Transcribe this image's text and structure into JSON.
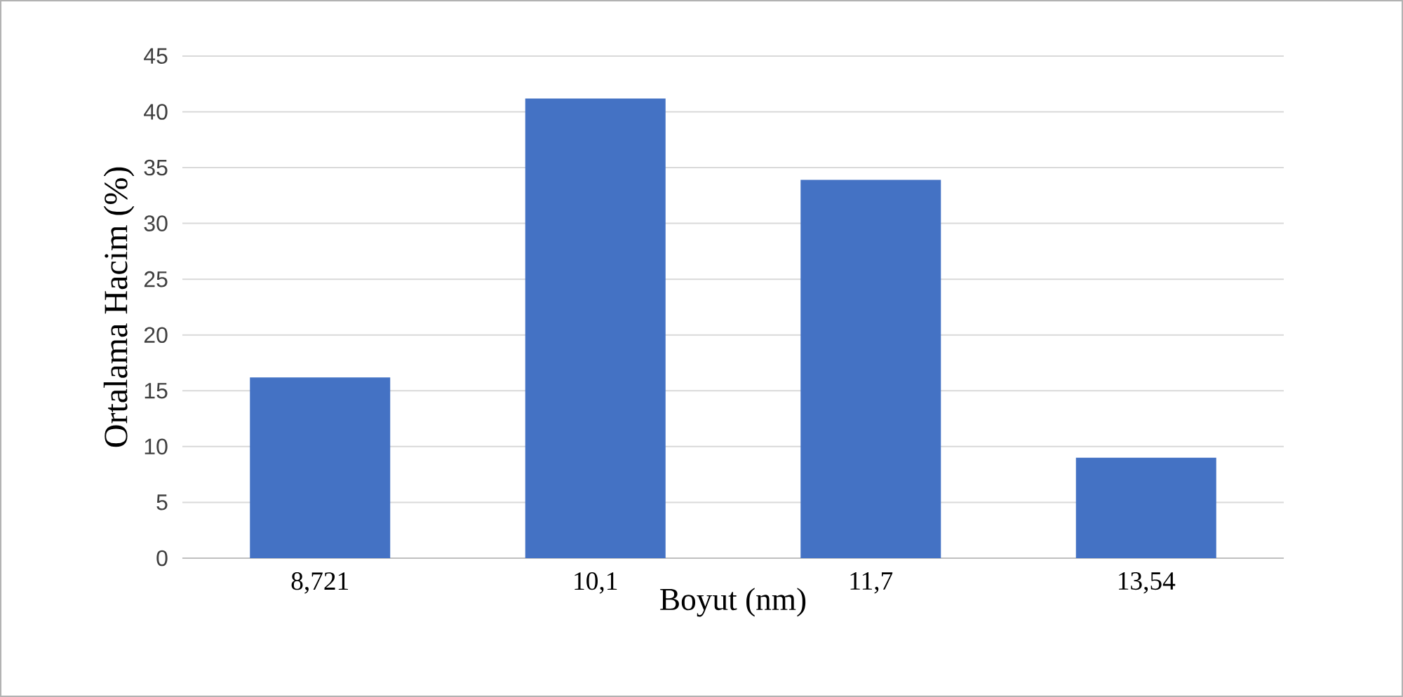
{
  "chart_data": {
    "type": "bar",
    "xlabel": "Boyut (nm)",
    "ylabel": "Ortalama Hacim (%)",
    "categories": [
      "8,721",
      "10,1",
      "11,7",
      "13,54"
    ],
    "values": [
      16.2,
      41.2,
      33.9,
      9.0
    ],
    "color": "#4472c4",
    "ylim": [
      0,
      45
    ],
    "yticks": [
      0,
      5,
      10,
      15,
      20,
      25,
      30,
      35,
      40,
      45
    ],
    "grid": "y"
  }
}
